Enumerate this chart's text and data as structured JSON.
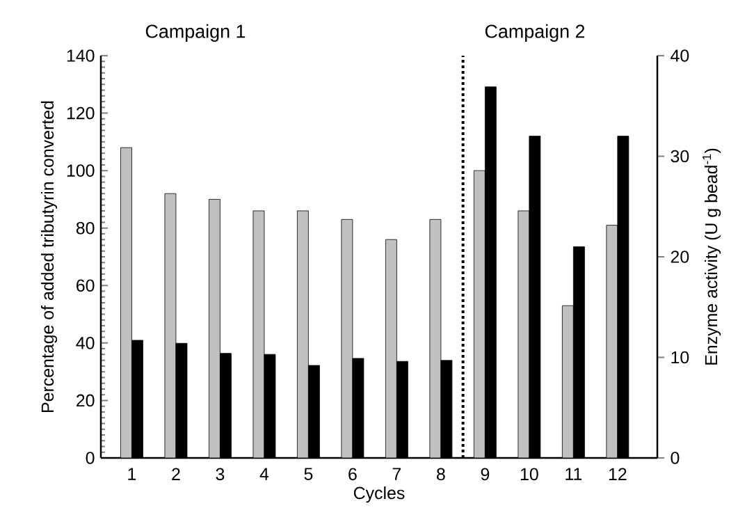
{
  "chart_data": {
    "type": "bar",
    "xlabel": "Cycles",
    "ylabel": "Percentage of added tributyrin converted",
    "y2label": "Enzyme activity (U g bead$^{-1}$)",
    "categories": [
      "1",
      "2",
      "3",
      "4",
      "5",
      "6",
      "7",
      "8",
      "9",
      "10",
      "11",
      "12"
    ],
    "series": [
      {
        "color": "#c0c0c0",
        "values": [
          108,
          92,
          90,
          86,
          86,
          83,
          76,
          83,
          100,
          86,
          53,
          81
        ]
      },
      {
        "color": "#000000",
        "axis": "y2",
        "values": [
          11.7,
          11.4,
          10.4,
          10.3,
          9.2,
          9.9,
          9.6,
          9.7,
          36.9,
          32,
          21,
          32
        ]
      }
    ],
    "ylim": [
      0,
      140
    ],
    "yticks": [
      0,
      20,
      40,
      60,
      80,
      100,
      120,
      140
    ],
    "y2lim": [
      0,
      40
    ],
    "y2ticks": [
      0,
      10,
      20,
      30,
      40
    ],
    "annotations": [
      "Campaign 1",
      "Campaign 2"
    ],
    "grid": false
  }
}
